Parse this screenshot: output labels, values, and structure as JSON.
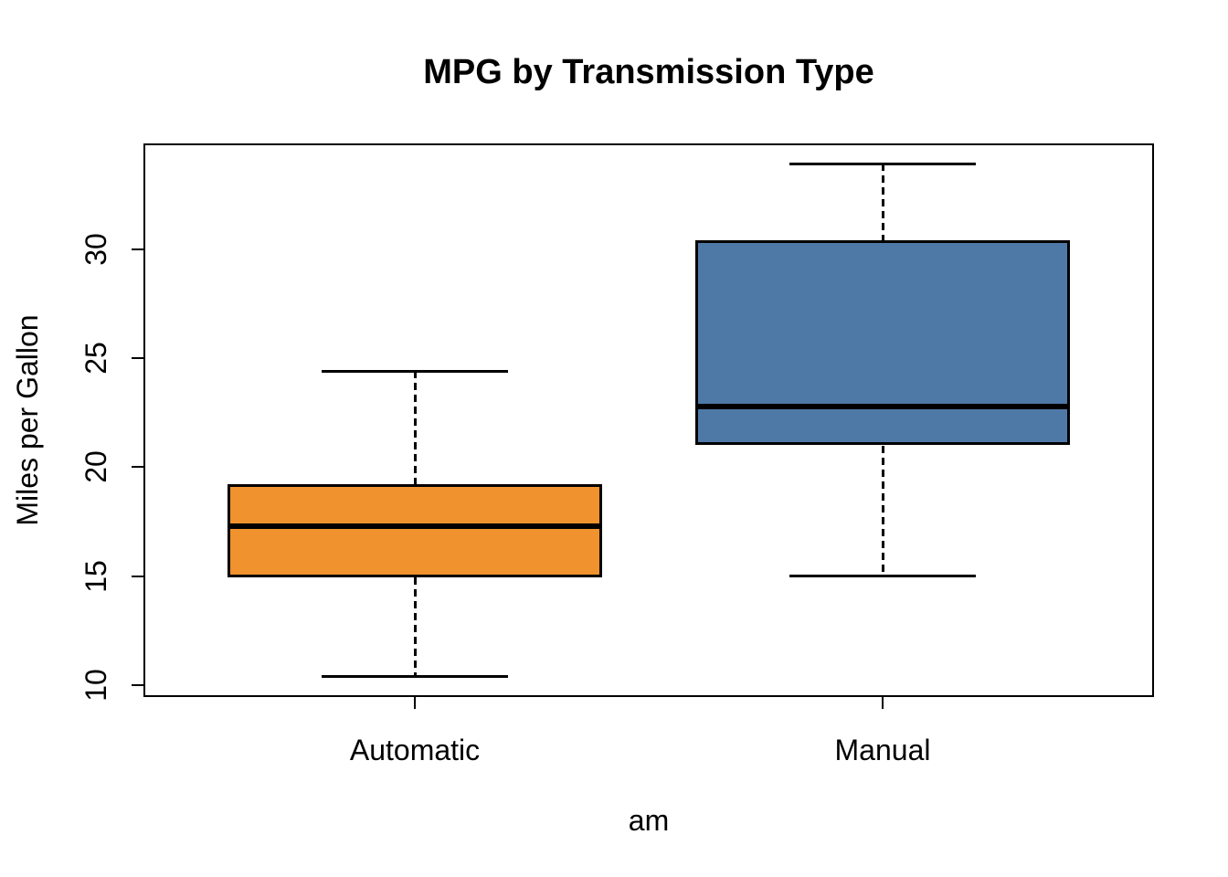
{
  "chart_data": {
    "type": "boxplot",
    "title": "MPG by Transmission Type",
    "xlabel": "am",
    "ylabel": "Miles per Gallon",
    "categories": [
      "Automatic",
      "Manual"
    ],
    "series": [
      {
        "name": "Automatic",
        "min": 10.4,
        "q1": 14.95,
        "median": 17.3,
        "q3": 19.2,
        "max": 24.4,
        "fill": "#F0922E"
      },
      {
        "name": "Manual",
        "min": 15.0,
        "q1": 21.0,
        "median": 22.8,
        "q3": 30.4,
        "max": 33.9,
        "fill": "#4E79A7"
      }
    ],
    "yticks": [
      10,
      15,
      20,
      25,
      30
    ],
    "ylim": [
      9.46,
      34.84
    ],
    "xlim": [
      0.42,
      2.58
    ],
    "box_width": 0.8,
    "staple_width": 0.4,
    "grid": false,
    "legend": false,
    "outliers": [],
    "colors": {
      "stroke": "#000000",
      "background": "#FFFFFF",
      "text": "#000000"
    }
  }
}
